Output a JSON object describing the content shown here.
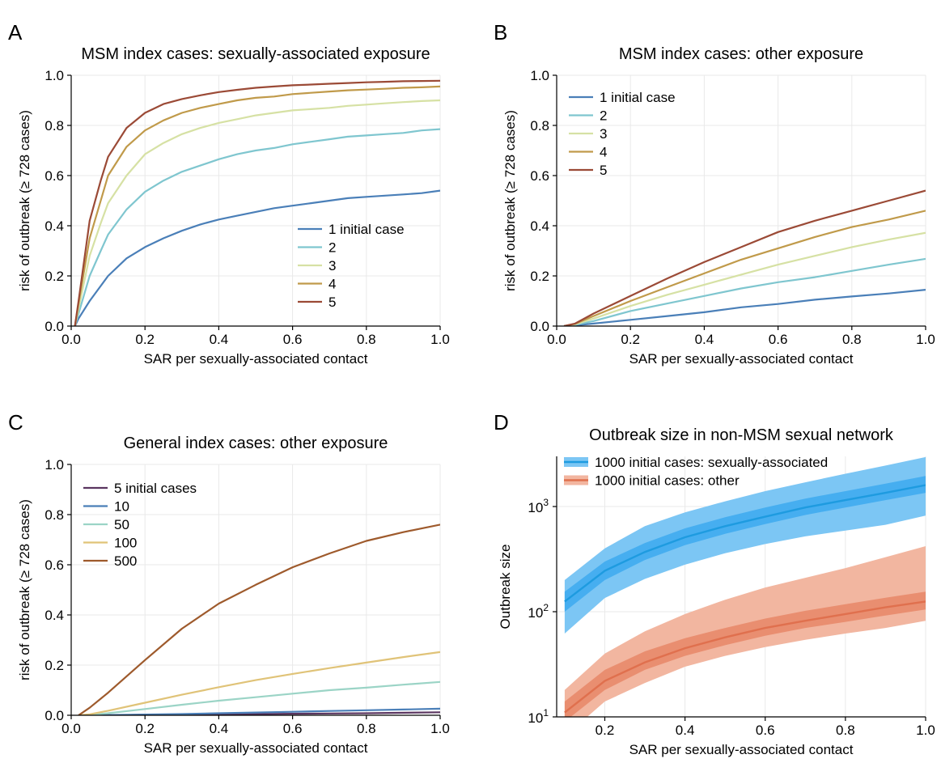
{
  "chart_data": [
    {
      "panel": "A",
      "type": "line",
      "title": "MSM index cases: sexually-associated exposure",
      "xlabel": "SAR per sexually-associated contact",
      "ylabel": "risk of outbreak (≥ 728 cases)",
      "xlim": [
        0,
        1
      ],
      "ylim": [
        0,
        1
      ],
      "yscale": "linear",
      "xticks": [
        0,
        0.2,
        0.4,
        0.6,
        0.8,
        1.0
      ],
      "xtick_labels": [
        "0.0",
        "0.2",
        "0.4",
        "0.6",
        "0.8",
        "1.0"
      ],
      "yticks": [
        0,
        0.2,
        0.4,
        0.6,
        0.8,
        1.0
      ],
      "ytick_labels": [
        "0.0",
        "0.2",
        "0.4",
        "0.6",
        "0.8",
        "1.0"
      ],
      "grid": true,
      "legend": "lower-right",
      "x": [
        0.01,
        0.02,
        0.05,
        0.08,
        0.1,
        0.15,
        0.2,
        0.25,
        0.3,
        0.35,
        0.4,
        0.45,
        0.5,
        0.55,
        0.6,
        0.65,
        0.7,
        0.75,
        0.8,
        0.85,
        0.9,
        0.95,
        1.0
      ],
      "series": [
        {
          "name": "1 initial case",
          "color": "#4a7fb8",
          "values": [
            0.0,
            0.03,
            0.1,
            0.16,
            0.2,
            0.27,
            0.315,
            0.35,
            0.38,
            0.405,
            0.425,
            0.44,
            0.455,
            0.47,
            0.48,
            0.49,
            0.5,
            0.51,
            0.515,
            0.52,
            0.525,
            0.53,
            0.54
          ]
        },
        {
          "name": "2",
          "color": "#7fc6cf",
          "values": [
            0.0,
            0.05,
            0.2,
            0.3,
            0.365,
            0.465,
            0.535,
            0.58,
            0.615,
            0.64,
            0.665,
            0.685,
            0.7,
            0.71,
            0.725,
            0.735,
            0.745,
            0.755,
            0.76,
            0.765,
            0.77,
            0.78,
            0.785
          ]
        },
        {
          "name": "3",
          "color": "#d6e1a4",
          "values": [
            0.0,
            0.07,
            0.28,
            0.41,
            0.49,
            0.6,
            0.685,
            0.73,
            0.765,
            0.79,
            0.81,
            0.825,
            0.84,
            0.85,
            0.86,
            0.865,
            0.87,
            0.878,
            0.883,
            0.888,
            0.893,
            0.897,
            0.9
          ]
        },
        {
          "name": "4",
          "color": "#c09a4a",
          "values": [
            0.0,
            0.09,
            0.35,
            0.5,
            0.6,
            0.715,
            0.78,
            0.82,
            0.85,
            0.87,
            0.885,
            0.9,
            0.91,
            0.915,
            0.925,
            0.93,
            0.935,
            0.94,
            0.943,
            0.946,
            0.95,
            0.952,
            0.955
          ]
        },
        {
          "name": "5",
          "color": "#9b4a36",
          "values": [
            0.0,
            0.1,
            0.42,
            0.58,
            0.675,
            0.79,
            0.85,
            0.885,
            0.905,
            0.92,
            0.933,
            0.942,
            0.95,
            0.955,
            0.96,
            0.963,
            0.966,
            0.969,
            0.972,
            0.974,
            0.976,
            0.977,
            0.978
          ]
        }
      ]
    },
    {
      "panel": "B",
      "type": "line",
      "title": "MSM index cases: other exposure",
      "xlabel": "SAR per sexually-associated contact",
      "ylabel": "risk of outbreak (≥ 728 cases)",
      "xlim": [
        0,
        1
      ],
      "ylim": [
        0,
        1
      ],
      "yscale": "linear",
      "xticks": [
        0,
        0.2,
        0.4,
        0.6,
        0.8,
        1.0
      ],
      "xtick_labels": [
        "0.0",
        "0.2",
        "0.4",
        "0.6",
        "0.8",
        "1.0"
      ],
      "yticks": [
        0,
        0.2,
        0.4,
        0.6,
        0.8,
        1.0
      ],
      "ytick_labels": [
        "0.0",
        "0.2",
        "0.4",
        "0.6",
        "0.8",
        "1.0"
      ],
      "grid": true,
      "legend": "upper-left",
      "x": [
        0.02,
        0.05,
        0.1,
        0.2,
        0.3,
        0.4,
        0.5,
        0.6,
        0.7,
        0.8,
        0.9,
        1.0
      ],
      "series": [
        {
          "name": "1 initial case",
          "color": "#4a7fb8",
          "values": [
            0.0,
            0.003,
            0.01,
            0.025,
            0.04,
            0.055,
            0.075,
            0.088,
            0.105,
            0.118,
            0.13,
            0.145
          ]
        },
        {
          "name": "2",
          "color": "#7fc6cf",
          "values": [
            0.0,
            0.005,
            0.02,
            0.06,
            0.09,
            0.12,
            0.15,
            0.175,
            0.195,
            0.22,
            0.245,
            0.268
          ]
        },
        {
          "name": "3",
          "color": "#d6e1a4",
          "values": [
            0.0,
            0.007,
            0.03,
            0.08,
            0.125,
            0.165,
            0.205,
            0.245,
            0.28,
            0.315,
            0.345,
            0.372
          ]
        },
        {
          "name": "4",
          "color": "#c09a4a",
          "values": [
            0.0,
            0.009,
            0.04,
            0.1,
            0.155,
            0.21,
            0.265,
            0.31,
            0.355,
            0.395,
            0.425,
            0.46
          ]
        },
        {
          "name": "5",
          "color": "#9b4a36",
          "values": [
            0.0,
            0.01,
            0.05,
            0.12,
            0.19,
            0.255,
            0.315,
            0.375,
            0.42,
            0.46,
            0.5,
            0.54
          ]
        }
      ]
    },
    {
      "panel": "C",
      "type": "line",
      "title": "General index cases: other exposure",
      "xlabel": "SAR per sexually-associated contact",
      "ylabel": "risk of outbreak (≥ 728 cases)",
      "xlim": [
        0,
        1
      ],
      "ylim": [
        0,
        1
      ],
      "yscale": "linear",
      "xticks": [
        0,
        0.2,
        0.4,
        0.6,
        0.8,
        1.0
      ],
      "xtick_labels": [
        "0.0",
        "0.2",
        "0.4",
        "0.6",
        "0.8",
        "1.0"
      ],
      "yticks": [
        0,
        0.2,
        0.4,
        0.6,
        0.8,
        1.0
      ],
      "ytick_labels": [
        "0.0",
        "0.2",
        "0.4",
        "0.6",
        "0.8",
        "1.0"
      ],
      "grid": true,
      "legend": "upper-left",
      "x": [
        0.02,
        0.05,
        0.1,
        0.2,
        0.3,
        0.4,
        0.5,
        0.6,
        0.7,
        0.8,
        0.9,
        1.0
      ],
      "series": [
        {
          "name": "5 initial cases",
          "color": "#5a3560",
          "values": [
            0.0,
            0.0,
            0.0,
            0.002,
            0.003,
            0.004,
            0.005,
            0.006,
            0.007,
            0.008,
            0.01,
            0.012
          ]
        },
        {
          "name": "10",
          "color": "#4a7fb8",
          "values": [
            0.0,
            0.0,
            0.001,
            0.003,
            0.005,
            0.008,
            0.011,
            0.014,
            0.017,
            0.02,
            0.023,
            0.026
          ]
        },
        {
          "name": "50",
          "color": "#9bd4c6",
          "values": [
            0.0,
            0.002,
            0.008,
            0.025,
            0.042,
            0.058,
            0.072,
            0.086,
            0.1,
            0.11,
            0.122,
            0.133
          ]
        },
        {
          "name": "100",
          "color": "#e0c378",
          "values": [
            0.0,
            0.004,
            0.018,
            0.05,
            0.082,
            0.112,
            0.14,
            0.165,
            0.188,
            0.21,
            0.232,
            0.252
          ]
        },
        {
          "name": "500",
          "color": "#9e5a2c",
          "values": [
            0.0,
            0.03,
            0.09,
            0.22,
            0.345,
            0.445,
            0.52,
            0.59,
            0.645,
            0.695,
            0.73,
            0.76
          ]
        }
      ]
    },
    {
      "panel": "D",
      "type": "area",
      "title": "Outbreak size in non-MSM sexual network",
      "xlabel": "SAR per sexually-associated contact",
      "ylabel": "Outbreak size",
      "xlim": [
        0.08,
        1.0
      ],
      "ylim": [
        10,
        3000
      ],
      "yscale": "log",
      "xticks": [
        0.2,
        0.4,
        0.6,
        0.8,
        1.0
      ],
      "xtick_labels": [
        "0.2",
        "0.4",
        "0.6",
        "0.8",
        "1.0"
      ],
      "yticks": [
        10,
        100,
        1000
      ],
      "ytick_labels": [
        "10",
        "10",
        "10"
      ],
      "ytick_exponents": [
        "1",
        "2",
        "3"
      ],
      "grid": true,
      "legend": "upper-left",
      "x": [
        0.1,
        0.2,
        0.3,
        0.4,
        0.5,
        0.6,
        0.7,
        0.8,
        0.9,
        1.0
      ],
      "series": [
        {
          "name": "1000 initial cases: sexually-associated",
          "color": "#1e9be0",
          "band_outer": "#7cc6f4",
          "band_inner": "#46aef0",
          "median": [
            125,
            245,
            370,
            510,
            650,
            800,
            980,
            1150,
            1350,
            1600
          ],
          "lower_outer": [
            62,
            135,
            205,
            280,
            360,
            440,
            520,
            590,
            670,
            820
          ],
          "upper_outer": [
            200,
            400,
            650,
            880,
            1120,
            1400,
            1700,
            2050,
            2450,
            2950
          ],
          "lower_inner": [
            100,
            200,
            310,
            430,
            550,
            680,
            830,
            980,
            1150,
            1350
          ],
          "upper_inner": [
            155,
            300,
            450,
            620,
            790,
            980,
            1190,
            1400,
            1650,
            1950
          ]
        },
        {
          "name": "1000 initial cases: other",
          "color": "#e0704e",
          "band_outer": "#f2b6a0",
          "band_inner": "#e98e70",
          "median": [
            11,
            22,
            33,
            45,
            57,
            70,
            82,
            95,
            110,
            125
          ],
          "lower_outer": [
            6.5,
            14,
            21,
            30,
            38,
            46,
            54,
            62,
            70,
            82
          ],
          "upper_outer": [
            18,
            40,
            65,
            95,
            130,
            170,
            210,
            260,
            330,
            420
          ],
          "lower_inner": [
            9,
            18,
            28,
            38,
            48,
            59,
            70,
            80,
            92,
            105
          ],
          "upper_inner": [
            14,
            28,
            42,
            56,
            70,
            86,
            102,
            118,
            136,
            155
          ]
        }
      ]
    }
  ]
}
